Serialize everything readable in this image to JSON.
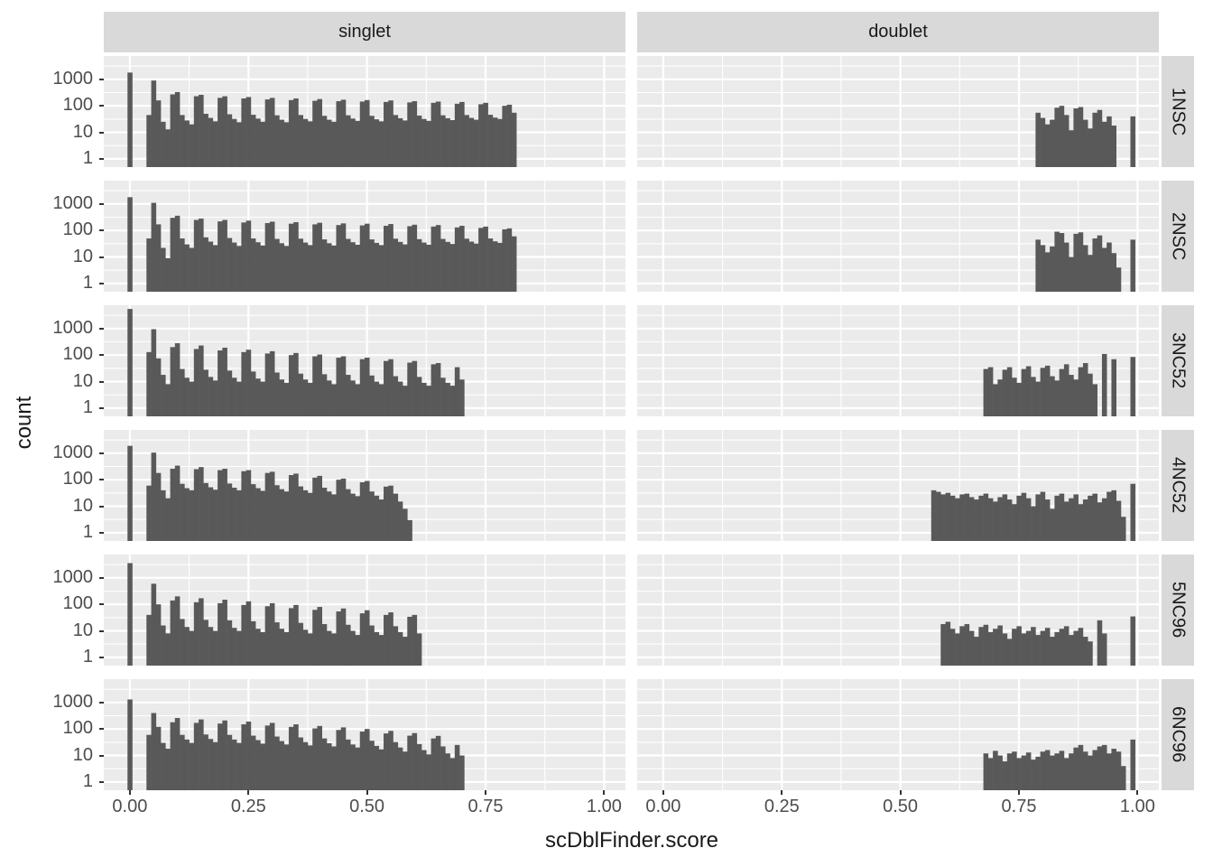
{
  "colors": {
    "bar": "#595959",
    "panel_bg": "#EBEBEB",
    "grid": "#FFFFFF",
    "strip_bg": "#D9D9D9",
    "axis_text": "#4D4D4D",
    "title_text": "#1A1A1A",
    "tick_mark": "#333333",
    "background": "#FFFFFF"
  },
  "chart_data": {
    "type": "bar",
    "subtype": "faceted_histogram_log_y",
    "title": "",
    "xlabel": "scDblFinder.score",
    "ylabel": "count",
    "facet_columns": [
      "singlet",
      "doublet"
    ],
    "facet_rows": [
      "1NSC",
      "2NSC",
      "3NC52",
      "4NC52",
      "5NC96",
      "6NC96"
    ],
    "legend": "none",
    "grid": "on",
    "x_axis": {
      "domain": [
        -0.055,
        1.045
      ],
      "ticks": [
        0,
        0.25,
        0.5,
        0.75,
        1.0
      ],
      "tick_labels": [
        "0.00",
        "0.25",
        "0.50",
        "0.75",
        "1.00"
      ],
      "minor_ticks": [
        0.125,
        0.375,
        0.625,
        0.875
      ]
    },
    "y_axis": {
      "scale": "log10",
      "domain_log10": [
        -0.31,
        3.88
      ],
      "ticks": [
        1,
        10,
        100,
        1000
      ],
      "tick_labels": [
        "1",
        "10",
        "100",
        "1000"
      ],
      "minor_log10": [
        0.5,
        1.5,
        2.5,
        3.5
      ]
    },
    "bin_width": 0.01,
    "panels": [
      {
        "row": "1NSC",
        "col": "singlet",
        "x_start": 0.0,
        "counts": [
          1800,
          0,
          0,
          0,
          45,
          900,
          160,
          25,
          13,
          270,
          330,
          45,
          28,
          20,
          230,
          260,
          50,
          35,
          26,
          200,
          230,
          48,
          32,
          24,
          190,
          215,
          46,
          33,
          25,
          175,
          200,
          44,
          30,
          24,
          165,
          190,
          45,
          32,
          26,
          155,
          180,
          42,
          30,
          25,
          150,
          170,
          44,
          33,
          27,
          145,
          165,
          42,
          31,
          26,
          140,
          160,
          45,
          34,
          28,
          135,
          150,
          43,
          32,
          27,
          130,
          145,
          44,
          34,
          29,
          120,
          140,
          45,
          35,
          30,
          115,
          130,
          46,
          36,
          32,
          100,
          110,
          55
        ]
      },
      {
        "row": "1NSC",
        "col": "doublet",
        "x_start": 0.79,
        "counts": [
          55,
          35,
          20,
          30,
          85,
          100,
          45,
          12,
          80,
          90,
          30,
          14,
          55,
          70,
          25,
          40,
          18,
          0,
          0,
          0,
          40
        ]
      },
      {
        "row": "2NSC",
        "col": "singlet",
        "x_start": 0.0,
        "counts": [
          1800,
          0,
          0,
          0,
          50,
          1100,
          170,
          22,
          9,
          300,
          360,
          50,
          30,
          22,
          250,
          280,
          55,
          38,
          28,
          220,
          250,
          52,
          35,
          26,
          200,
          235,
          50,
          36,
          27,
          190,
          215,
          48,
          33,
          26,
          180,
          205,
          49,
          35,
          28,
          170,
          195,
          46,
          33,
          27,
          160,
          185,
          48,
          36,
          29,
          155,
          180,
          46,
          34,
          28,
          150,
          175,
          49,
          37,
          30,
          145,
          165,
          47,
          35,
          29,
          140,
          160,
          48,
          37,
          31,
          130,
          150,
          49,
          38,
          32,
          125,
          140,
          50,
          39,
          34,
          110,
          120,
          60
        ]
      },
      {
        "row": "2NSC",
        "col": "doublet",
        "x_start": 0.79,
        "counts": [
          45,
          28,
          15,
          25,
          90,
          80,
          35,
          10,
          75,
          85,
          28,
          12,
          50,
          65,
          22,
          35,
          14,
          4,
          0,
          0,
          45
        ]
      },
      {
        "row": "3NC52",
        "col": "singlet",
        "x_start": 0.0,
        "counts": [
          5500,
          0,
          0,
          0,
          130,
          950,
          75,
          18,
          8,
          200,
          280,
          30,
          14,
          10,
          170,
          230,
          28,
          15,
          11,
          150,
          190,
          26,
          14,
          10,
          130,
          160,
          24,
          13,
          10,
          115,
          140,
          22,
          12,
          9,
          100,
          120,
          20,
          12,
          9,
          90,
          105,
          19,
          11,
          8,
          80,
          90,
          18,
          11,
          8,
          70,
          80,
          17,
          10,
          8,
          60,
          70,
          16,
          10,
          7,
          52,
          60,
          15,
          9,
          7,
          45,
          50,
          14,
          9,
          7,
          35,
          12
        ]
      },
      {
        "row": "3NC52",
        "col": "doublet",
        "x_start": 0.68,
        "counts": [
          30,
          35,
          8,
          12,
          28,
          35,
          14,
          9,
          30,
          38,
          15,
          10,
          33,
          40,
          16,
          11,
          30,
          45,
          18,
          12,
          35,
          50,
          20,
          8,
          0,
          110,
          0,
          70,
          0,
          0,
          0,
          85
        ]
      },
      {
        "row": "4NC52",
        "col": "singlet",
        "x_start": 0.0,
        "counts": [
          1900,
          0,
          0,
          0,
          60,
          1050,
          180,
          40,
          20,
          260,
          340,
          70,
          48,
          40,
          250,
          300,
          75,
          52,
          42,
          230,
          260,
          72,
          50,
          40,
          210,
          230,
          68,
          48,
          38,
          180,
          200,
          62,
          44,
          36,
          150,
          170,
          56,
          40,
          32,
          120,
          140,
          50,
          36,
          28,
          100,
          110,
          44,
          30,
          24,
          80,
          90,
          36,
          25,
          18,
          55,
          60,
          30,
          15,
          8,
          3
        ]
      },
      {
        "row": "4NC52",
        "col": "doublet",
        "x_start": 0.57,
        "counts": [
          40,
          35,
          28,
          32,
          25,
          20,
          28,
          30,
          22,
          18,
          25,
          30,
          20,
          15,
          22,
          28,
          18,
          12,
          25,
          32,
          20,
          10,
          28,
          35,
          18,
          8,
          25,
          30,
          15,
          20,
          28,
          12,
          18,
          25,
          30,
          14,
          20,
          35,
          40,
          16,
          4,
          0,
          70
        ]
      },
      {
        "row": "5NC96",
        "col": "singlet",
        "x_start": 0.0,
        "counts": [
          3600,
          0,
          0,
          0,
          40,
          600,
          100,
          16,
          8,
          140,
          200,
          28,
          14,
          10,
          120,
          170,
          26,
          14,
          10,
          110,
          150,
          25,
          13,
          10,
          95,
          130,
          23,
          12,
          9,
          85,
          110,
          21,
          12,
          9,
          72,
          95,
          20,
          11,
          8,
          62,
          80,
          18,
          10,
          8,
          54,
          70,
          17,
          10,
          7,
          46,
          60,
          16,
          9,
          7,
          40,
          50,
          15,
          9,
          6,
          34,
          40,
          8
        ]
      },
      {
        "row": "5NC96",
        "col": "doublet",
        "x_start": 0.59,
        "counts": [
          18,
          22,
          12,
          8,
          15,
          18,
          10,
          6,
          14,
          17,
          9,
          12,
          16,
          8,
          5,
          12,
          15,
          8,
          10,
          14,
          7,
          10,
          13,
          6,
          9,
          12,
          15,
          7,
          10,
          13,
          6,
          4,
          0,
          25,
          8,
          0,
          0,
          0,
          0,
          0,
          35
        ]
      },
      {
        "row": "6NC96",
        "col": "singlet",
        "x_start": 0.0,
        "counts": [
          1300,
          0,
          0,
          0,
          60,
          400,
          120,
          30,
          18,
          180,
          260,
          60,
          40,
          30,
          170,
          230,
          62,
          42,
          32,
          160,
          210,
          60,
          40,
          30,
          150,
          190,
          56,
          38,
          28,
          135,
          170,
          52,
          35,
          26,
          120,
          150,
          48,
          32,
          24,
          105,
          130,
          44,
          29,
          22,
          92,
          115,
          40,
          26,
          20,
          80,
          100,
          36,
          23,
          17,
          68,
          85,
          32,
          20,
          14,
          56,
          70,
          27,
          16,
          11,
          44,
          55,
          22,
          12,
          8,
          25,
          10
        ]
      },
      {
        "row": "6NC96",
        "col": "doublet",
        "x_start": 0.68,
        "counts": [
          12,
          8,
          15,
          10,
          6,
          12,
          14,
          8,
          10,
          13,
          7,
          9,
          14,
          16,
          10,
          12,
          15,
          8,
          12,
          20,
          25,
          14,
          10,
          16,
          22,
          25,
          12,
          18,
          14,
          4,
          0,
          40
        ]
      }
    ]
  }
}
